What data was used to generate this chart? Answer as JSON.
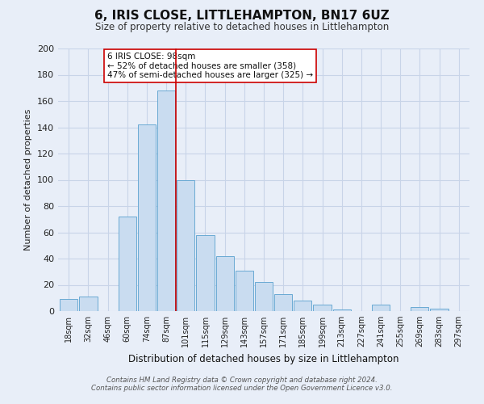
{
  "title": "6, IRIS CLOSE, LITTLEHAMPTON, BN17 6UZ",
  "subtitle": "Size of property relative to detached houses in Littlehampton",
  "xlabel": "Distribution of detached houses by size in Littlehampton",
  "ylabel": "Number of detached properties",
  "bar_labels": [
    "18sqm",
    "32sqm",
    "46sqm",
    "60sqm",
    "74sqm",
    "87sqm",
    "101sqm",
    "115sqm",
    "129sqm",
    "143sqm",
    "157sqm",
    "171sqm",
    "185sqm",
    "199sqm",
    "213sqm",
    "227sqm",
    "241sqm",
    "255sqm",
    "269sqm",
    "283sqm",
    "297sqm"
  ],
  "bar_values": [
    9,
    11,
    0,
    72,
    142,
    168,
    100,
    58,
    42,
    31,
    22,
    13,
    8,
    5,
    1,
    0,
    5,
    0,
    3,
    2,
    0
  ],
  "bar_color": "#c9dcf0",
  "bar_edge_color": "#6aaad4",
  "ylim": [
    0,
    200
  ],
  "yticks": [
    0,
    20,
    40,
    60,
    80,
    100,
    120,
    140,
    160,
    180,
    200
  ],
  "property_line_x": 6,
  "property_line_color": "#cc0000",
  "annotation_title": "6 IRIS CLOSE: 98sqm",
  "annotation_line1": "← 52% of detached houses are smaller (358)",
  "annotation_line2": "47% of semi-detached houses are larger (325) →",
  "annotation_box_color": "#ffffff",
  "annotation_box_edge": "#cc0000",
  "footer1": "Contains HM Land Registry data © Crown copyright and database right 2024.",
  "footer2": "Contains public sector information licensed under the Open Government Licence v3.0.",
  "background_color": "#e8eef8",
  "plot_bg_color": "#e8eef8",
  "grid_color": "#c8d4e8",
  "title_fontsize": 11,
  "subtitle_fontsize": 8.5
}
